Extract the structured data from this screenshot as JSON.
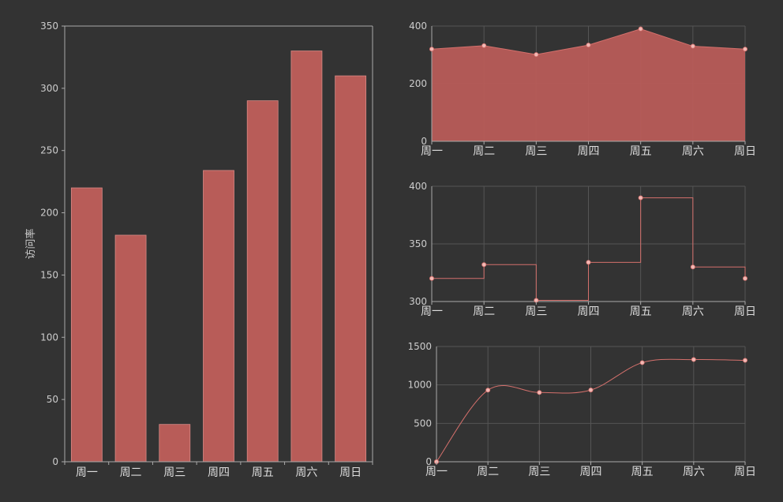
{
  "colors": {
    "background": "#333333",
    "bar": "#b85c58",
    "bar_edge": "#d88a86",
    "area": "#b85c58",
    "line": "#d4706c",
    "point": "#f2b9b5",
    "grid": "#555555",
    "axis": "#aaaaaa"
  },
  "chart_data": [
    {
      "type": "bar",
      "categories": [
        "周一",
        "周二",
        "周三",
        "周四",
        "周五",
        "周六",
        "周日"
      ],
      "values": [
        220,
        182,
        30,
        234,
        290,
        330,
        310
      ],
      "ylabel": "访问率",
      "ylim": [
        0,
        350
      ],
      "yticks": [
        0,
        50,
        100,
        150,
        200,
        250,
        300,
        350
      ],
      "grid": false
    },
    {
      "type": "area",
      "categories": [
        "周一",
        "周二",
        "周三",
        "周四",
        "周五",
        "周六",
        "周日"
      ],
      "values": [
        320,
        332,
        301,
        334,
        390,
        330,
        320
      ],
      "ylim": [
        0,
        400
      ],
      "yticks": [
        0,
        200,
        400
      ],
      "grid": true
    },
    {
      "type": "line",
      "style": "step",
      "categories": [
        "周一",
        "周二",
        "周三",
        "周四",
        "周五",
        "周六",
        "周日"
      ],
      "values": [
        320,
        332,
        301,
        334,
        390,
        330,
        320
      ],
      "ylim": [
        300,
        400
      ],
      "yticks": [
        300,
        350,
        400
      ],
      "grid": true
    },
    {
      "type": "line",
      "style": "smooth",
      "categories": [
        "周一",
        "周二",
        "周三",
        "周四",
        "周五",
        "周六",
        "周日"
      ],
      "values": [
        0,
        932,
        901,
        934,
        1290,
        1330,
        1320
      ],
      "ylim": [
        0,
        1500
      ],
      "yticks": [
        0,
        500,
        1000,
        1500
      ],
      "grid": true
    }
  ]
}
